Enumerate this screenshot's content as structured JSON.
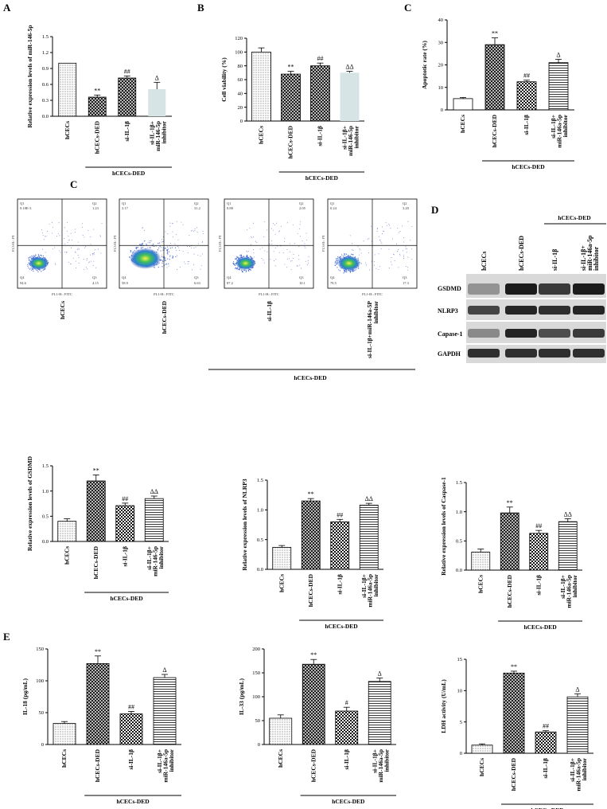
{
  "panels": {
    "A": "A",
    "B": "B",
    "C": "C",
    "C2": "C",
    "D": "D",
    "E": "E"
  },
  "group_label": "hCECs-DED",
  "chart_data": [
    {
      "id": "A",
      "type": "bar",
      "ylabel": "Relative expression levels of miR-146-5p",
      "categories": [
        "hCECs",
        "hCECs-DED",
        "si-IL-1β",
        "si-IL-1β+ miR-146-5p inhibitor"
      ],
      "values": [
        1.0,
        0.36,
        0.72,
        0.51
      ],
      "errors": [
        0.0,
        0.04,
        0.04,
        0.13
      ],
      "sig": [
        "",
        "**",
        "##",
        "Δ"
      ],
      "ylim": [
        0,
        1.5
      ],
      "yticks": [
        0.0,
        0.3,
        0.6,
        0.9,
        1.2,
        1.5
      ],
      "patterns": [
        "dots",
        "cross",
        "cross",
        "plain"
      ],
      "group_label": "hCECs-DED"
    },
    {
      "id": "B",
      "type": "bar",
      "ylabel": "Cell viability (%)",
      "categories": [
        "hCECs",
        "hCECs-DED",
        "si-IL-1β",
        "si-IL-1β+ miR-146-5p inhibitor"
      ],
      "values": [
        100,
        68,
        80,
        70
      ],
      "errors": [
        6,
        4,
        4,
        2
      ],
      "sig": [
        "",
        "**",
        "##",
        "ΔΔ"
      ],
      "ylim": [
        0,
        120
      ],
      "yticks": [
        0,
        20,
        40,
        60,
        80,
        100,
        120
      ],
      "patterns": [
        "dots",
        "cross",
        "cross",
        "plain"
      ],
      "group_label": "hCECs-DED"
    },
    {
      "id": "C",
      "type": "bar",
      "ylabel": "Apoptotic rate (%)",
      "categories": [
        "hCECs",
        "hCECs-DED",
        "si-IL-1β",
        "si-IL-1β+ miR-146a-5p inhibitor"
      ],
      "values": [
        5,
        29,
        12.5,
        21
      ],
      "errors": [
        0.5,
        3,
        0.7,
        1.5
      ],
      "sig": [
        "",
        "**",
        "##",
        "Δ"
      ],
      "ylim": [
        0,
        40
      ],
      "yticks": [
        0,
        10,
        20,
        30,
        40
      ],
      "patterns": [
        "plain",
        "cross",
        "check",
        "hlines"
      ],
      "group_label": "hCECs-DED"
    },
    {
      "id": "GSDMD",
      "type": "bar",
      "ylabel": "Relative expression levels of GSDMD",
      "categories": [
        "hCECs",
        "hCECs-DED",
        "si-IL-1β",
        "si-IL-1β+ miR-146-5p inhibitor"
      ],
      "values": [
        0.4,
        1.2,
        0.71,
        0.85
      ],
      "errors": [
        0.05,
        0.12,
        0.05,
        0.05
      ],
      "sig": [
        "",
        "**",
        "##",
        "ΔΔ"
      ],
      "ylim": [
        0,
        1.5
      ],
      "yticks": [
        0.0,
        0.5,
        1.0,
        1.5
      ],
      "patterns": [
        "dots",
        "cross",
        "check",
        "hlines"
      ],
      "group_label": "hCECs-DED"
    },
    {
      "id": "NLRP3",
      "type": "bar",
      "ylabel": "Relative expression levels of NLRP3",
      "categories": [
        "hCECs",
        "hCECs-DED",
        "si-IL-1β",
        "si-IL-1β+ miR-146a-5p inhibitor"
      ],
      "values": [
        0.37,
        1.15,
        0.8,
        1.08
      ],
      "errors": [
        0.03,
        0.04,
        0.04,
        0.03
      ],
      "sig": [
        "",
        "**",
        "##",
        "ΔΔ"
      ],
      "ylim": [
        0,
        1.5
      ],
      "yticks": [
        0.0,
        0.5,
        1.0,
        1.5
      ],
      "patterns": [
        "dots",
        "cross",
        "check",
        "hlines"
      ],
      "group_label": "hCECs-DED"
    },
    {
      "id": "Caspase",
      "type": "bar",
      "ylabel": "Relative expression levels of Caspase-1",
      "categories": [
        "hCECs",
        "hCECs-DED",
        "si-IL-1β",
        "si-IL-1β+ miR-146a-5p inhibitor"
      ],
      "values": [
        0.31,
        0.98,
        0.63,
        0.83
      ],
      "errors": [
        0.05,
        0.1,
        0.05,
        0.05
      ],
      "sig": [
        "",
        "**",
        "##",
        "ΔΔ"
      ],
      "ylim": [
        0,
        1.5
      ],
      "yticks": [
        0.0,
        0.5,
        1.0,
        1.5
      ],
      "patterns": [
        "dots",
        "cross",
        "check",
        "hlines"
      ],
      "group_label": "hCECs-DED"
    },
    {
      "id": "IL18",
      "type": "bar",
      "ylabel": "IL-18 (pg/mL)",
      "categories": [
        "hCECs",
        "hCECs-DED",
        "si-IL-1β",
        "si-IL-1β+ miR-146a-5p inhibitor"
      ],
      "values": [
        33,
        127,
        48,
        105
      ],
      "errors": [
        3,
        12,
        4,
        5
      ],
      "sig": [
        "",
        "**",
        "##",
        "Δ"
      ],
      "ylim": [
        0,
        150
      ],
      "yticks": [
        0,
        50,
        100,
        150
      ],
      "patterns": [
        "dots",
        "cross",
        "check",
        "hlines"
      ],
      "group_label": "hCECs-DED"
    },
    {
      "id": "IL33",
      "type": "bar",
      "ylabel": "IL-33 (pg/mL)",
      "categories": [
        "hCECs",
        "hCECs-DED",
        "si-IL-1β",
        "si-IL-1β+ miR-146a-5p inhibitor"
      ],
      "values": [
        55,
        168,
        70,
        132
      ],
      "errors": [
        7,
        10,
        8,
        7
      ],
      "sig": [
        "",
        "**",
        "#",
        "Δ"
      ],
      "ylim": [
        0,
        200
      ],
      "yticks": [
        0,
        50,
        100,
        150,
        200
      ],
      "patterns": [
        "dots",
        "cross",
        "check",
        "hlines"
      ],
      "group_label": "hCECs-DED"
    },
    {
      "id": "LDH",
      "type": "bar",
      "ylabel": "LDH activity (U/mL)",
      "categories": [
        "hCECs",
        "hCECs-DED",
        "si-IL-1β",
        "si-IL-1β+ miR-146a-5p inhibitor"
      ],
      "values": [
        1.3,
        12.8,
        3.4,
        9.0
      ],
      "errors": [
        0.2,
        0.3,
        0.2,
        0.5
      ],
      "sig": [
        "",
        "**",
        "##",
        "Δ"
      ],
      "ylim": [
        0,
        15
      ],
      "yticks": [
        0,
        5,
        10,
        15
      ],
      "patterns": [
        "dots",
        "cross",
        "check",
        "hlines"
      ],
      "group_label": "hCECs-DED"
    }
  ],
  "flow": {
    "plots": [
      {
        "label": "hCECs",
        "q1": "9.18E-3",
        "q2": "1.23",
        "q3": "4.15",
        "q4": "94.6"
      },
      {
        "label": "hCECs-DED",
        "q1": "3.17",
        "q2": "31.2",
        "q3": "6.63",
        "q4": "58.9"
      },
      {
        "label": "si-IL-1β",
        "q1": "0.88",
        "q2": "2.05",
        "q3": "10.1",
        "q4": "87.2"
      },
      {
        "label": "si-IL-1β+miR-146a-5P inhibitor",
        "q1": "0.24",
        "q2": "3.20",
        "q3": "17.3",
        "q4": "78.5"
      }
    ],
    "quadrant_names": [
      "Q1",
      "Q2",
      "Q3",
      "Q4"
    ],
    "xaxis": "FL1-H:: FITC",
    "yaxis": "FL3-H:: PI",
    "group_label": "hCECs-DED"
  },
  "western": {
    "columns": [
      "hCECs",
      "hCECs-DED",
      "si-IL-1β",
      "si-IL-1β+ miR-146a-5p inhibitor"
    ],
    "rows": [
      "GSDMD",
      "NLRP3",
      "Capase-1",
      "GAPDH"
    ],
    "group_label": "hCECs-DED"
  }
}
